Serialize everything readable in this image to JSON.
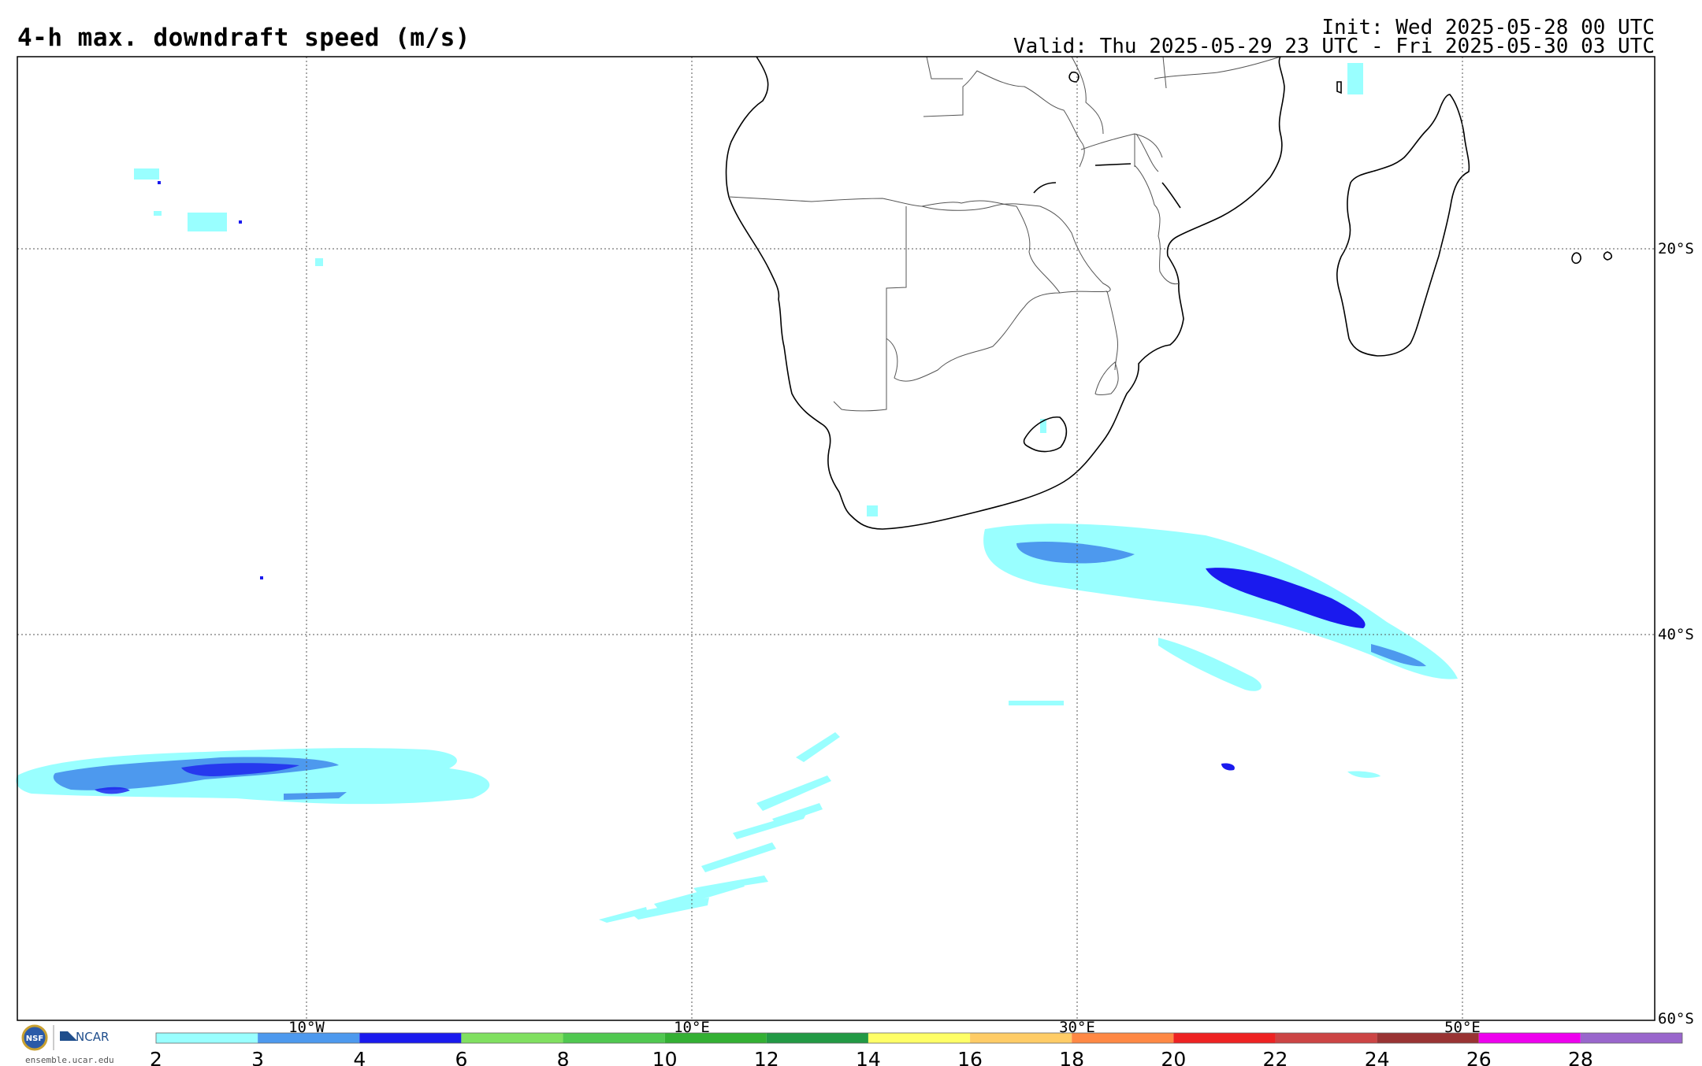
{
  "header": {
    "title": "4-h max. downdraft speed (m/s)",
    "init": "Init: Wed 2025-05-28 00 UTC",
    "valid": "Valid: Thu 2025-05-29 23 UTC - Fri 2025-05-30 03 UTC"
  },
  "map": {
    "projection": "cylindrical",
    "lon_range": [
      -25,
      60
    ],
    "lat_range": [
      -60,
      -10
    ],
    "lon_gridlines": [
      {
        "value": -10,
        "label": "10°W"
      },
      {
        "value": 10,
        "label": "10°E"
      },
      {
        "value": 30,
        "label": "30°E"
      },
      {
        "value": 50,
        "label": "50°E"
      }
    ],
    "lat_gridlines": [
      {
        "value": -20,
        "label": "20°S"
      },
      {
        "value": -40,
        "label": "40°S"
      },
      {
        "value": -60,
        "label": "60°S"
      }
    ],
    "coastline_color": "#000000",
    "border_color": "#555555"
  },
  "colorbar": {
    "ticks": [
      "2",
      "3",
      "4",
      "6",
      "8",
      "10",
      "12",
      "14",
      "16",
      "18",
      "20",
      "22",
      "24",
      "26",
      "28"
    ],
    "colors": [
      "#99ffff",
      "#4d99ee",
      "#1a1aee",
      "#80e060",
      "#50c850",
      "#33b033",
      "#229944",
      "#ffff66",
      "#ffcc66",
      "#ff8844",
      "#ee2222",
      "#cc4444",
      "#993333",
      "#ee00ee",
      "#9966cc"
    ]
  },
  "logo": {
    "org1": "NSF",
    "org2": "NCAR",
    "url": "ensemble.ucar.edu"
  }
}
